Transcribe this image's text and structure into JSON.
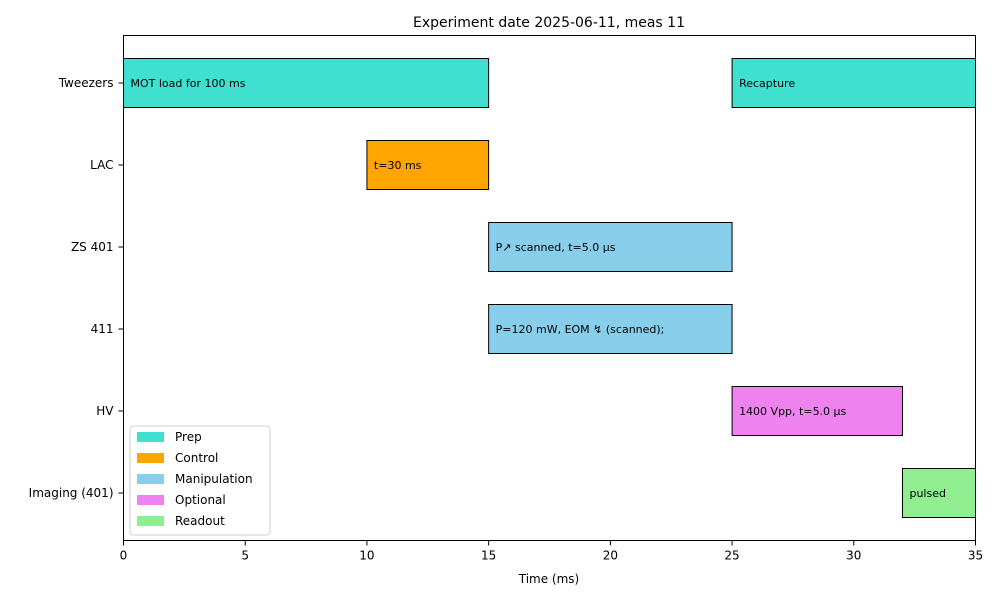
{
  "chart_data": {
    "type": "gantt",
    "title": "Experiment date 2025-06-11, meas 11",
    "xlabel": "Time (ms)",
    "ylabel": "",
    "xlim": [
      0,
      35
    ],
    "x_ticks": [
      0,
      5,
      10,
      15,
      20,
      25,
      30,
      35
    ],
    "rows": [
      "Tweezers",
      "LAC",
      "ZS 401",
      "411",
      "HV",
      "Imaging (401)"
    ],
    "categories": [
      {
        "name": "Prep",
        "color": "#40E0D0"
      },
      {
        "name": "Control",
        "color": "#FFA500"
      },
      {
        "name": "Manipulation",
        "color": "#87CEEB"
      },
      {
        "name": "Optional",
        "color": "#EE82EE"
      },
      {
        "name": "Readout",
        "color": "#90EE90"
      }
    ],
    "bars": [
      {
        "row": "Tweezers",
        "start": 0,
        "end": 15,
        "category": "Prep",
        "label": "MOT load for 100 ms"
      },
      {
        "row": "Tweezers",
        "start": 25,
        "end": 35,
        "category": "Prep",
        "label": "Recapture"
      },
      {
        "row": "LAC",
        "start": 10,
        "end": 15,
        "category": "Control",
        "label": "t=30 ms"
      },
      {
        "row": "ZS 401",
        "start": 15,
        "end": 25,
        "category": "Manipulation",
        "label": "P↗ scanned, t=5.0 µs"
      },
      {
        "row": "411",
        "start": 15,
        "end": 25,
        "category": "Manipulation",
        "label": "P=120 mW, EOM ↯ (scanned);"
      },
      {
        "row": "HV",
        "start": 25,
        "end": 32,
        "category": "Optional",
        "label": "1400 Vpp, t=5.0 µs"
      },
      {
        "row": "Imaging (401)",
        "start": 32,
        "end": 35,
        "category": "Readout",
        "label": "pulsed"
      }
    ],
    "grid": false,
    "legend_position": "lower-left"
  }
}
